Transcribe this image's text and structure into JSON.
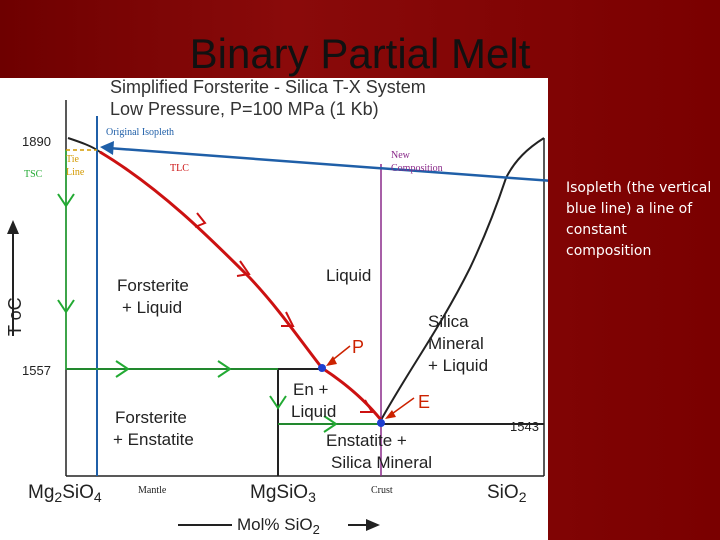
{
  "slide": {
    "title": "Binary Partial Melt",
    "side_note": "Isopleth  (the vertical blue line) a line of constant composition"
  },
  "diagram": {
    "title_line1": "Simplified Forsterite - Silica T-X System",
    "title_line2": "Low Pressure, P=100 MPa  (1 Kb)",
    "y_axis_label": "T ",
    "y_axis_unit": "oC",
    "temps": {
      "t1890": "1890",
      "t1557": "1557",
      "t1543": "1543"
    },
    "x_axis_label": "Mol% SiO",
    "x_axis_sub": "2",
    "components": {
      "mg2sio4_a": "Mg",
      "mg2sio4_b": "2",
      "mg2sio4_c": "SiO",
      "mg2sio4_d": "4",
      "mgsio3_a": "MgSiO",
      "mgsio3_b": "3",
      "sio2_a": "SiO",
      "sio2_b": "2"
    },
    "labels": {
      "mantle": "Mantle",
      "crust": "Crust",
      "original_isopleth": "Original Isopleth",
      "new_composition_1": "New",
      "new_composition_2": "Composition",
      "tie_line_1": "Tie",
      "tie_line_2": "Line",
      "tsc": "TSC",
      "tlc": "TLC",
      "liquid": "Liquid",
      "forsterite_liquid_1": "Forsterite",
      "forsterite_liquid_2": "+ Liquid",
      "silica_liquid_1": "Silica",
      "silica_liquid_2": "Mineral",
      "silica_liquid_3": "+ Liquid",
      "en_liquid_1": "En +",
      "en_liquid_2": "Liquid",
      "forsterite_enstatite_1": "Forsterite",
      "forsterite_enstatite_2": "+ Enstatite",
      "enstatite_silica_1": "Enstatite +",
      "enstatite_silica_2": "Silica Mineral",
      "peritectic": "P",
      "eutectic": "E"
    },
    "colors": {
      "blue_isopleth": "#1f5fa8",
      "red_path": "#cc1111",
      "green_path": "#22aa33",
      "purple_line": "#8a2a8a",
      "annotation_red": "#cc2200",
      "annotation_orange": "#d49a00"
    }
  }
}
